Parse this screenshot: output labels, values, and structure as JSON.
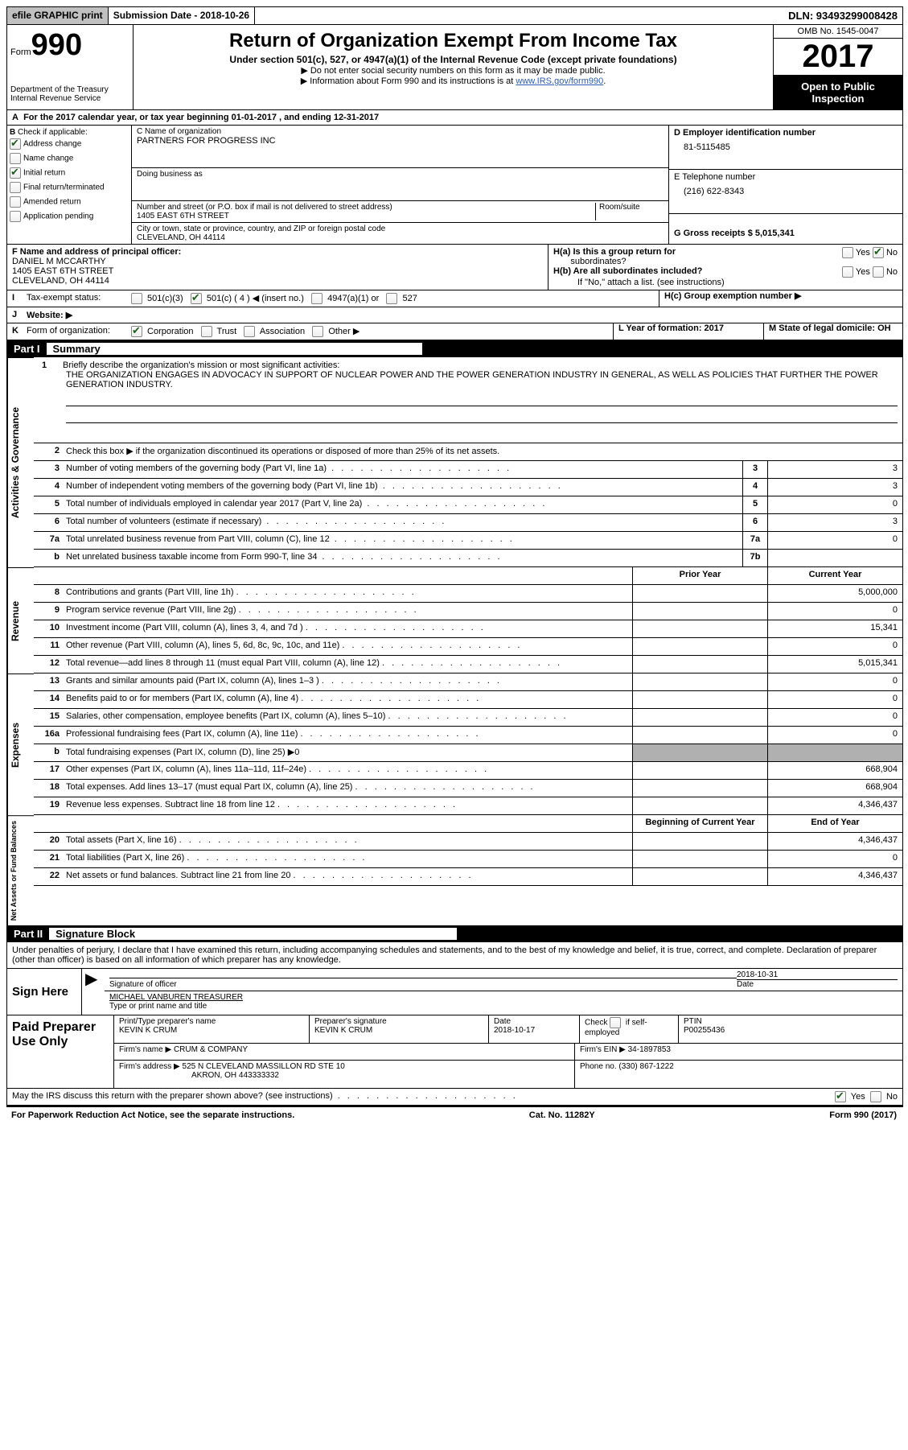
{
  "top_bar": {
    "efile": "efile GRAPHIC print",
    "submission": "Submission Date - 2018-10-26",
    "dln": "DLN: 93493299008428"
  },
  "header": {
    "form_label": "Form",
    "form_num": "990",
    "dept1": "Department of the Treasury",
    "dept2": "Internal Revenue Service",
    "title": "Return of Organization Exempt From Income Tax",
    "subtitle": "Under section 501(c), 527, or 4947(a)(1) of the Internal Revenue Code (except private foundations)",
    "note1": "▶ Do not enter social security numbers on this form as it may be made public.",
    "note2_pre": "▶ Information about Form 990 and its instructions is at ",
    "note2_link": "www.IRS.gov/form990",
    "omb": "OMB No. 1545-0047",
    "year": "2017",
    "inspection": "Open to Public Inspection"
  },
  "section_a": "For the 2017 calendar year, or tax year beginning 01-01-2017   , and ending 12-31-2017",
  "col_b": {
    "label": "Check if applicable:",
    "items": [
      "Address change",
      "Name change",
      "Initial return",
      "Final return/terminated",
      "Amended return",
      "Application pending"
    ],
    "checked": [
      true,
      false,
      true,
      false,
      false,
      false
    ]
  },
  "col_c": {
    "name_label": "C Name of organization",
    "name": "PARTNERS FOR PROGRESS INC",
    "dba_label": "Doing business as",
    "street_label": "Number and street (or P.O. box if mail is not delivered to street address)",
    "room_label": "Room/suite",
    "street": "1405 EAST 6TH STREET",
    "city_label": "City or town, state or province, country, and ZIP or foreign postal code",
    "city": "CLEVELAND, OH  44114"
  },
  "col_d": {
    "d_label": "D Employer identification number",
    "d_val": "81-5115485",
    "e_label": "E Telephone number",
    "e_val": "(216) 622-8343",
    "g_label": "G Gross receipts $ 5,015,341"
  },
  "fgh": {
    "f_label": "F  Name and address of principal officer:",
    "f_name": "DANIEL M MCCARTHY",
    "f_addr1": "1405 EAST 6TH STREET",
    "f_addr2": "CLEVELAND, OH  44114",
    "ha": "H(a) Is this a group return for",
    "ha2": "subordinates?",
    "hb": "H(b) Are all subordinates included?",
    "hb_note": "If \"No,\" attach a list. (see instructions)",
    "hc": "H(c) Group exemption number ▶",
    "yes": "Yes",
    "no": "No"
  },
  "line_i": {
    "label": "I",
    "text": "Tax-exempt status:",
    "opts": [
      "501(c)(3)",
      "501(c) ( 4 ) ◀ (insert no.)",
      "4947(a)(1) or",
      "527"
    ],
    "sel": 1
  },
  "line_j": {
    "label": "J",
    "text": "Website: ▶"
  },
  "line_k": {
    "label": "K",
    "text": "Form of organization:",
    "opts": [
      "Corporation",
      "Trust",
      "Association",
      "Other ▶"
    ],
    "sel": 0,
    "l_label": "L Year of formation: 2017",
    "m_label": "M State of legal domicile: OH"
  },
  "part1": {
    "num": "Part I",
    "title": "Summary"
  },
  "mission": {
    "num": "1",
    "label": "Briefly describe the organization's mission or most significant activities:",
    "text": "THE ORGANIZATION ENGAGES IN ADVOCACY IN SUPPORT OF NUCLEAR POWER AND THE POWER GENERATION INDUSTRY IN GENERAL, AS WELL AS POLICIES THAT FURTHER THE POWER GENERATION INDUSTRY."
  },
  "gov_rows": [
    {
      "n": "2",
      "d": "Check this box ▶     if the organization discontinued its operations or disposed of more than 25% of its net assets.",
      "box": "",
      "v": ""
    },
    {
      "n": "3",
      "d": "Number of voting members of the governing body (Part VI, line 1a)",
      "box": "3",
      "v": "3"
    },
    {
      "n": "4",
      "d": "Number of independent voting members of the governing body (Part VI, line 1b)",
      "box": "4",
      "v": "3"
    },
    {
      "n": "5",
      "d": "Total number of individuals employed in calendar year 2017 (Part V, line 2a)",
      "box": "5",
      "v": "0"
    },
    {
      "n": "6",
      "d": "Total number of volunteers (estimate if necessary)",
      "box": "6",
      "v": "3"
    },
    {
      "n": "7a",
      "d": "Total unrelated business revenue from Part VIII, column (C), line 12",
      "box": "7a",
      "v": "0"
    },
    {
      "n": "b",
      "d": "Net unrelated business taxable income from Form 990-T, line 34",
      "box": "7b",
      "v": ""
    }
  ],
  "col_headers": {
    "prior": "Prior Year",
    "current": "Current Year"
  },
  "rev_rows": [
    {
      "n": "8",
      "d": "Contributions and grants (Part VIII, line 1h)",
      "p": "",
      "c": "5,000,000"
    },
    {
      "n": "9",
      "d": "Program service revenue (Part VIII, line 2g)",
      "p": "",
      "c": "0"
    },
    {
      "n": "10",
      "d": "Investment income (Part VIII, column (A), lines 3, 4, and 7d )",
      "p": "",
      "c": "15,341"
    },
    {
      "n": "11",
      "d": "Other revenue (Part VIII, column (A), lines 5, 6d, 8c, 9c, 10c, and 11e)",
      "p": "",
      "c": "0"
    },
    {
      "n": "12",
      "d": "Total revenue—add lines 8 through 11 (must equal Part VIII, column (A), line 12)",
      "p": "",
      "c": "5,015,341"
    }
  ],
  "exp_rows": [
    {
      "n": "13",
      "d": "Grants and similar amounts paid (Part IX, column (A), lines 1–3 )",
      "p": "",
      "c": "0"
    },
    {
      "n": "14",
      "d": "Benefits paid to or for members (Part IX, column (A), line 4)",
      "p": "",
      "c": "0"
    },
    {
      "n": "15",
      "d": "Salaries, other compensation, employee benefits (Part IX, column (A), lines 5–10)",
      "p": "",
      "c": "0"
    },
    {
      "n": "16a",
      "d": "Professional fundraising fees (Part IX, column (A), line 11e)",
      "p": "",
      "c": "0"
    },
    {
      "n": "b",
      "d": "Total fundraising expenses (Part IX, column (D), line 25) ▶0",
      "p": "shaded",
      "c": "shaded"
    },
    {
      "n": "17",
      "d": "Other expenses (Part IX, column (A), lines 11a–11d, 11f–24e)",
      "p": "",
      "c": "668,904"
    },
    {
      "n": "18",
      "d": "Total expenses. Add lines 13–17 (must equal Part IX, column (A), line 25)",
      "p": "",
      "c": "668,904"
    },
    {
      "n": "19",
      "d": "Revenue less expenses. Subtract line 18 from line 12",
      "p": "",
      "c": "4,346,437"
    }
  ],
  "net_headers": {
    "begin": "Beginning of Current Year",
    "end": "End of Year"
  },
  "net_rows": [
    {
      "n": "20",
      "d": "Total assets (Part X, line 16)",
      "p": "",
      "c": "4,346,437"
    },
    {
      "n": "21",
      "d": "Total liabilities (Part X, line 26)",
      "p": "",
      "c": "0"
    },
    {
      "n": "22",
      "d": "Net assets or fund balances. Subtract line 21 from line 20",
      "p": "",
      "c": "4,346,437"
    }
  ],
  "part2": {
    "num": "Part II",
    "title": "Signature Block"
  },
  "sig_text": "Under penalties of perjury, I declare that I have examined this return, including accompanying schedules and statements, and to the best of my knowledge and belief, it is true, correct, and complete. Declaration of preparer (other than officer) is based on all information of which preparer has any knowledge.",
  "sign": {
    "label": "Sign Here",
    "sig_of": "Signature of officer",
    "date": "2018-10-31",
    "date_label": "Date",
    "name": "MICHAEL VANBUREN TREASURER",
    "name_label": "Type or print name and title"
  },
  "prep": {
    "label": "Paid Preparer Use Only",
    "c1": "Print/Type preparer's name",
    "v1": "KEVIN K CRUM",
    "c2": "Preparer's signature",
    "v2": "KEVIN K CRUM",
    "c3": "Date",
    "v3": "2018-10-17",
    "c4": "Check       if self-employed",
    "c5": "PTIN",
    "v5": "P00255436",
    "firm_label": "Firm's name    ▶",
    "firm": "CRUM & COMPANY",
    "ein_label": "Firm's EIN ▶",
    "ein": "34-1897853",
    "addr_label": "Firm's address ▶",
    "addr": "525 N CLEVELAND MASSILLON RD STE 10",
    "addr2": "AKRON, OH  443333332",
    "phone_label": "Phone no.",
    "phone": "(330) 867-1222"
  },
  "discuss": {
    "text": "May the IRS discuss this return with the preparer shown above? (see instructions)",
    "yes": "Yes",
    "no": "No"
  },
  "footer": {
    "left": "For Paperwork Reduction Act Notice, see the separate instructions.",
    "mid": "Cat. No. 11282Y",
    "right": "Form 990 (2017)"
  },
  "vert_labels": {
    "gov": "Activities & Governance",
    "rev": "Revenue",
    "exp": "Expenses",
    "net": "Net Assets or Fund Balances"
  },
  "col_b_letter": "B"
}
